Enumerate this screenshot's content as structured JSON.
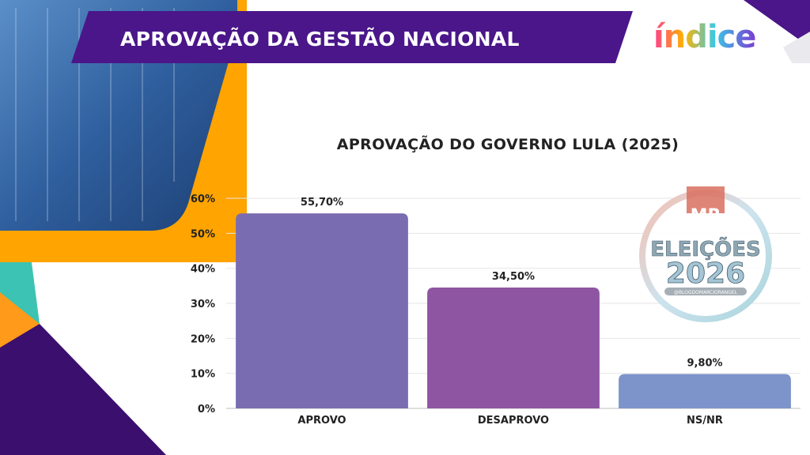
{
  "header": {
    "title": "APROVAÇÃO DA GESTÃO NACIONAL",
    "logo_text": "índice"
  },
  "watermark": {
    "badge": "MR",
    "line1": "ELEIÇÕES",
    "line2": "2026",
    "caption": "@BLOGDOMARCIORANGEL"
  },
  "colors": {
    "banner": "#4a1689",
    "accent_orange": "#ffa400",
    "accent_teal": "#3cc3b4",
    "purple_dark": "#3a0f6e"
  },
  "chart_data": {
    "type": "bar",
    "title": "APROVAÇÃO DO GOVERNO LULA (2025)",
    "categories": [
      "APROVO",
      "DESAPROVO",
      "NS/NR"
    ],
    "values": [
      55.7,
      34.5,
      9.8
    ],
    "value_labels": [
      "55,70%",
      "34,50%",
      "9,80%"
    ],
    "bar_colors": [
      "#7a6cb0",
      "#8e55a3",
      "#7c94c9"
    ],
    "ylim": [
      0,
      60
    ],
    "yticks": [
      0,
      10,
      20,
      30,
      40,
      50,
      60
    ],
    "ytick_labels": [
      "0%",
      "10%",
      "20%",
      "30%",
      "40%",
      "50%",
      "60%"
    ],
    "grid": true,
    "xlabel": "",
    "ylabel": ""
  }
}
